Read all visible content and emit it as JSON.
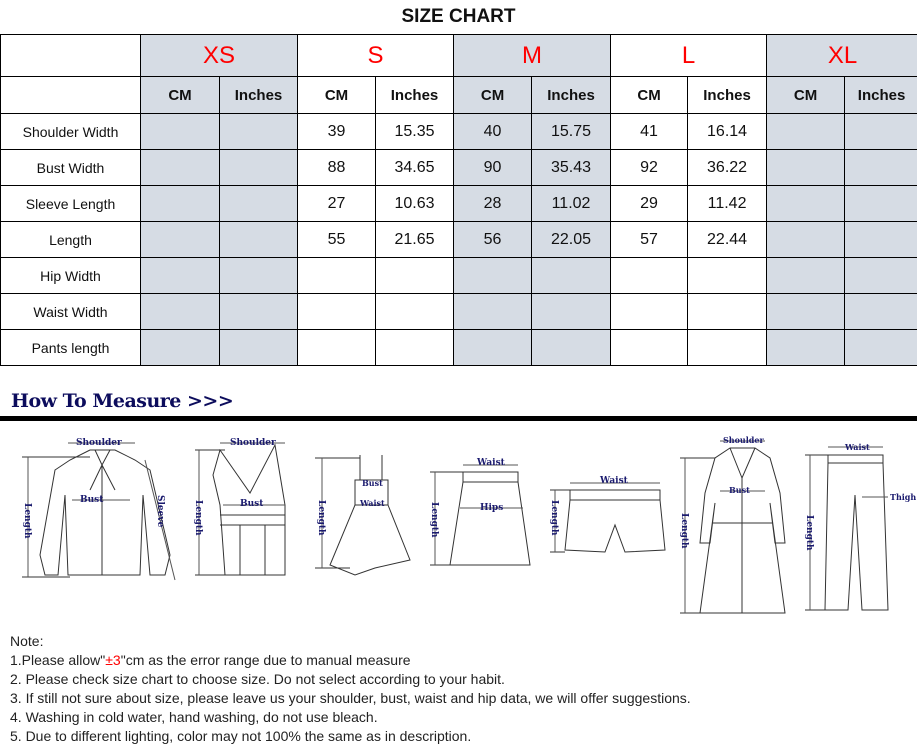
{
  "title": "SIZE CHART",
  "sizes": [
    "XS",
    "S",
    "M",
    "L",
    "XL"
  ],
  "units": {
    "cm": "CM",
    "inches": "Inches"
  },
  "rows": [
    {
      "label": "Shoulder Width",
      "values": [
        "",
        "",
        "39",
        "15.35",
        "40",
        "15.75",
        "41",
        "16.14",
        "",
        ""
      ]
    },
    {
      "label": "Bust Width",
      "values": [
        "",
        "",
        "88",
        "34.65",
        "90",
        "35.43",
        "92",
        "36.22",
        "",
        ""
      ]
    },
    {
      "label": "Sleeve Length",
      "values": [
        "",
        "",
        "27",
        "10.63",
        "28",
        "11.02",
        "29",
        "11.42",
        "",
        ""
      ]
    },
    {
      "label": "Length",
      "values": [
        "",
        "",
        "55",
        "21.65",
        "56",
        "22.05",
        "57",
        "22.44",
        "",
        ""
      ]
    },
    {
      "label": "Hip Width",
      "values": [
        "",
        "",
        "",
        "",
        "",
        "",
        "",
        "",
        "",
        ""
      ]
    },
    {
      "label": "Waist Width",
      "values": [
        "",
        "",
        "",
        "",
        "",
        "",
        "",
        "",
        "",
        ""
      ]
    },
    {
      "label": "Pants length",
      "values": [
        "",
        "",
        "",
        "",
        "",
        "",
        "",
        "",
        "",
        ""
      ]
    }
  ],
  "how_to_measure": {
    "heading": "How To Measure >>>",
    "labels": {
      "shoulder": "Shoulder",
      "bust": "Bust",
      "sleeve": "Sleeve",
      "length": "Length",
      "waist": "Waist",
      "hips": "Hips",
      "thigh": "Thigh"
    }
  },
  "notes": {
    "heading": "Note:",
    "item1_pre": "1.Please allow\"",
    "item1_red": "±3",
    "item1_post": "\"cm as the error range due to manual measure",
    "item2": "2. Please check size chart to choose size. Do not select according to your habit.",
    "item3": "3. If still not sure about size, please leave us your shoulder, bust, waist and hip data, we will offer suggestions.",
    "item4": "4. Washing in cold water, hand washing, do not use bleach.",
    "item5": "5. Due to different lighting, color may not 100% the same as in description."
  },
  "colors": {
    "size_label": "#ff0000",
    "shaded_column": "#d6dce4",
    "measure_text": "#1a1a6e"
  }
}
